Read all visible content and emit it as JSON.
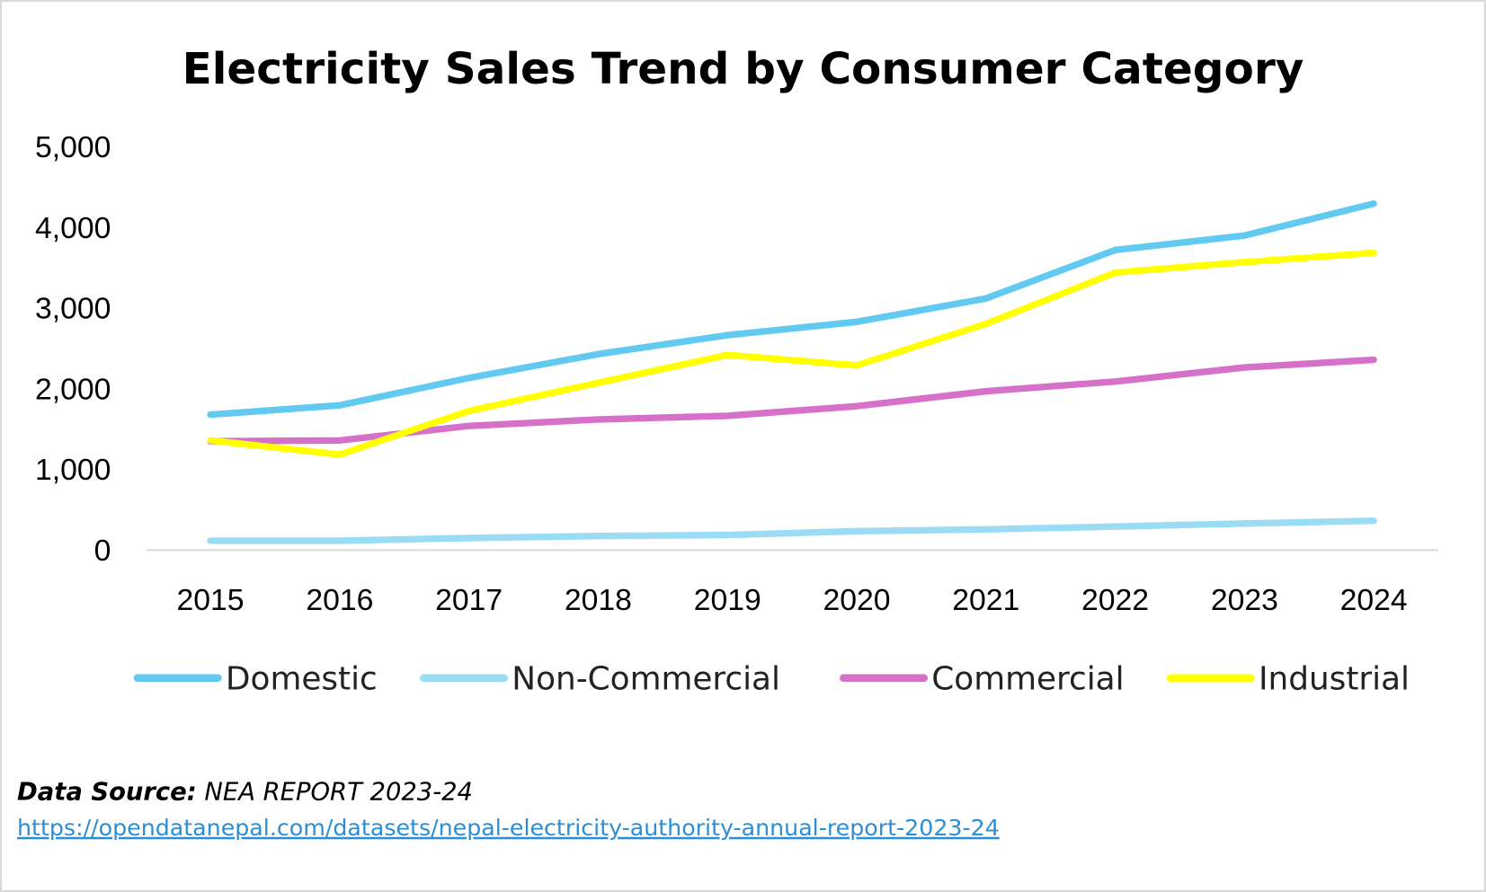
{
  "chart_data": {
    "type": "line",
    "title": "Electricity Sales Trend by Consumer Category",
    "xlabel": "",
    "ylabel": "",
    "x": [
      "2015",
      "2016",
      "2017",
      "2018",
      "2019",
      "2020",
      "2021",
      "2022",
      "2023",
      "2024"
    ],
    "ylim": [
      0,
      5000
    ],
    "yticks": [
      "0",
      "1,000",
      "2,000",
      "3,000",
      "4,000",
      "5,000"
    ],
    "ytick_values": [
      0,
      1000,
      2000,
      3000,
      4000,
      5000
    ],
    "grid": false,
    "legend_position": "bottom",
    "series": [
      {
        "name": "Domestic",
        "color": "#62c9f0",
        "values": [
          1680,
          1795,
          2135,
          2430,
          2665,
          2830,
          3120,
          3720,
          3900,
          4295
        ]
      },
      {
        "name": "Non-Commercial",
        "color": "#9bdcf5",
        "values": [
          117,
          117,
          150,
          175,
          188,
          235,
          258,
          293,
          330,
          364
        ]
      },
      {
        "name": "Commercial",
        "color": "#d670c8",
        "values": [
          1350,
          1360,
          1540,
          1620,
          1665,
          1785,
          1970,
          2090,
          2265,
          2360
        ]
      },
      {
        "name": "Industrial",
        "color": "#ffff00",
        "values": [
          1360,
          1185,
          1725,
          2075,
          2420,
          2290,
          2805,
          3440,
          3570,
          3685
        ]
      }
    ]
  },
  "footer": {
    "source_label": "Data Source:",
    "source_value": "NEA REPORT 2023-24",
    "link": "https://opendatanepal.com/datasets/nepal-electricity-authority-annual-report-2023-24"
  }
}
